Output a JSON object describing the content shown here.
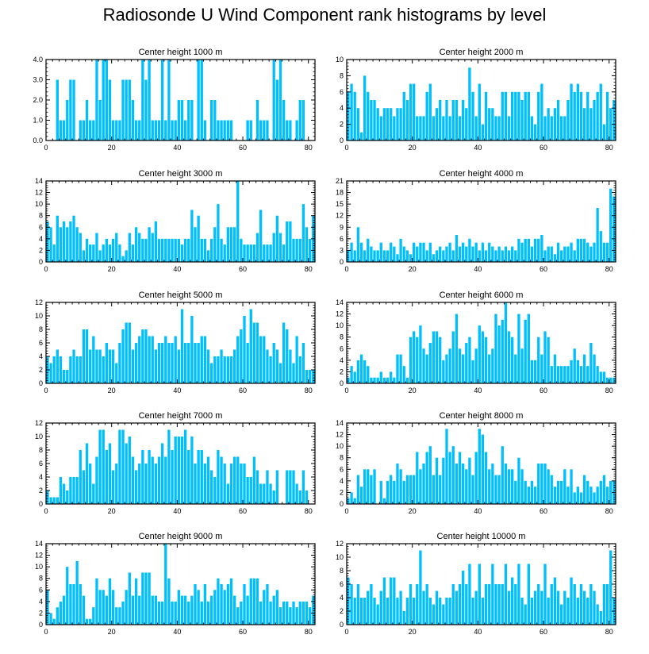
{
  "figure_title": "Radiosonde U Wind Component rank histograms by level",
  "bar_color": "#00BFFF",
  "axis_color": "#000000",
  "chart_data": [
    {
      "type": "bar",
      "title": "Center height 1000 m",
      "xlim": [
        0,
        82
      ],
      "xticks": [
        0,
        20,
        40,
        60,
        80
      ],
      "ylim": [
        0,
        4
      ],
      "yticks": [
        0.0,
        1.0,
        2.0,
        3.0,
        4.0
      ],
      "ytick_decimals": 1,
      "values": [
        0,
        0,
        0,
        3,
        1,
        1,
        2,
        3,
        3,
        0,
        1,
        1,
        2,
        1,
        1,
        4,
        2,
        4,
        4,
        3,
        1,
        1,
        1,
        3,
        3,
        3,
        2,
        1,
        1,
        4,
        3,
        4,
        1,
        1,
        1,
        4,
        1,
        4,
        1,
        1,
        2,
        2,
        1,
        2,
        2,
        0,
        4,
        4,
        1,
        0,
        2,
        2,
        1,
        1,
        1,
        1,
        1,
        0,
        0,
        0,
        0,
        1,
        1,
        0,
        2,
        1,
        1,
        1,
        0,
        4,
        3,
        4,
        2,
        1,
        1,
        0,
        1,
        2,
        2,
        0,
        0
      ]
    },
    {
      "type": "bar",
      "title": "Center height 2000 m",
      "xlim": [
        0,
        82
      ],
      "xticks": [
        0,
        20,
        40,
        60,
        80
      ],
      "ylim": [
        0,
        10
      ],
      "yticks": [
        0,
        2,
        4,
        6,
        8,
        10
      ],
      "ytick_decimals": 0,
      "values": [
        6,
        7,
        6,
        4,
        1,
        8,
        6,
        5,
        5,
        4,
        3,
        4,
        4,
        4,
        3,
        4,
        4,
        6,
        5,
        7,
        7,
        3,
        3,
        3,
        6,
        7,
        3,
        4,
        5,
        3,
        5,
        3,
        5,
        5,
        3,
        5,
        4,
        9,
        6,
        3,
        7,
        2,
        6,
        4,
        4,
        3,
        3,
        6,
        6,
        3,
        6,
        6,
        6,
        5,
        6,
        6,
        3,
        2,
        6,
        7,
        3,
        4,
        3,
        4,
        5,
        3,
        3,
        5,
        7,
        6,
        7,
        6,
        4,
        6,
        4,
        5,
        6,
        7,
        2,
        6,
        4,
        5
      ]
    },
    {
      "type": "bar",
      "title": "Center height 3000 m",
      "xlim": [
        0,
        82
      ],
      "xticks": [
        0,
        20,
        40,
        60,
        80
      ],
      "ylim": [
        0,
        14
      ],
      "yticks": [
        0,
        2,
        4,
        6,
        8,
        10,
        12,
        14
      ],
      "ytick_decimals": 0,
      "values": [
        7,
        6,
        3,
        8,
        6,
        7,
        6,
        7,
        8,
        6,
        5,
        2,
        4,
        3,
        3,
        5,
        2,
        3,
        4,
        3,
        4,
        5,
        3,
        1,
        2,
        5,
        3,
        6,
        5,
        4,
        4,
        6,
        5,
        7,
        4,
        4,
        4,
        4,
        4,
        4,
        4,
        3,
        4,
        4,
        9,
        6,
        8,
        4,
        4,
        2,
        4,
        6,
        10,
        4,
        3,
        6,
        6,
        6,
        14,
        4,
        3,
        3,
        3,
        3,
        5,
        9,
        3,
        3,
        3,
        5,
        8,
        5,
        3,
        7,
        7,
        4,
        4,
        4,
        10,
        6,
        4,
        8
      ]
    },
    {
      "type": "bar",
      "title": "Center height 4000 m",
      "xlim": [
        0,
        82
      ],
      "xticks": [
        0,
        20,
        40,
        60,
        80
      ],
      "ylim": [
        0,
        21
      ],
      "yticks": [
        0,
        3,
        6,
        9,
        12,
        15,
        18,
        21
      ],
      "ytick_decimals": 0,
      "values": [
        3,
        5,
        3,
        9,
        5,
        3,
        6,
        4,
        3,
        3,
        5,
        3,
        3,
        5,
        4,
        2,
        6,
        4,
        3,
        2,
        5,
        4,
        5,
        5,
        3,
        5,
        2,
        3,
        4,
        3,
        4,
        5,
        3,
        7,
        4,
        5,
        4,
        6,
        4,
        5,
        3,
        5,
        3,
        5,
        4,
        3,
        4,
        3,
        4,
        3,
        4,
        3,
        6,
        5,
        6,
        6,
        4,
        6,
        6,
        7,
        3,
        4,
        4,
        2,
        5,
        3,
        4,
        4,
        5,
        3,
        6,
        6,
        6,
        5,
        4,
        5,
        14,
        8,
        5,
        5,
        19,
        17
      ]
    },
    {
      "type": "bar",
      "title": "Center height 5000 m",
      "xlim": [
        0,
        82
      ],
      "xticks": [
        0,
        20,
        40,
        60,
        80
      ],
      "ylim": [
        0,
        12
      ],
      "yticks": [
        0,
        2,
        4,
        6,
        8,
        10,
        12
      ],
      "ytick_decimals": 0,
      "values": [
        4,
        3,
        4,
        5,
        4,
        2,
        2,
        4,
        5,
        4,
        4,
        8,
        8,
        5,
        7,
        5,
        5,
        4,
        6,
        5,
        5,
        3,
        6,
        8,
        9,
        9,
        5,
        6,
        7,
        8,
        8,
        7,
        7,
        5,
        6,
        6,
        7,
        6,
        6,
        7,
        5,
        11,
        6,
        6,
        10,
        6,
        6,
        7,
        7,
        5,
        3,
        4,
        4,
        5,
        4,
        4,
        4,
        5,
        7,
        8,
        10,
        6,
        11,
        9,
        9,
        7,
        7,
        5,
        4,
        6,
        5,
        3,
        9,
        8,
        5,
        3,
        7,
        4,
        6,
        2,
        2,
        2
      ]
    },
    {
      "type": "bar",
      "title": "Center height 6000 m",
      "xlim": [
        0,
        82
      ],
      "xticks": [
        0,
        20,
        40,
        60,
        80
      ],
      "ylim": [
        0,
        14
      ],
      "yticks": [
        0,
        2,
        4,
        6,
        8,
        10,
        12,
        14
      ],
      "ytick_decimals": 0,
      "values": [
        1,
        3,
        2,
        4,
        5,
        4,
        3,
        1,
        1,
        1,
        2,
        1,
        1,
        2,
        1,
        5,
        5,
        3,
        1,
        8,
        9,
        8,
        10,
        6,
        5,
        7,
        9,
        9,
        8,
        4,
        5,
        6,
        9,
        12,
        6,
        5,
        7,
        8,
        4,
        6,
        10,
        9,
        8,
        5,
        6,
        12,
        10,
        11,
        14,
        9,
        8,
        5,
        12,
        6,
        11,
        12,
        4,
        4,
        8,
        5,
        9,
        8,
        3,
        5,
        3,
        3,
        3,
        3,
        4,
        6,
        4,
        3,
        5,
        3,
        7,
        5,
        3,
        2,
        2,
        1,
        1,
        1
      ]
    },
    {
      "type": "bar",
      "title": "Center height 7000 m",
      "xlim": [
        0,
        82
      ],
      "xticks": [
        0,
        20,
        40,
        60,
        80
      ],
      "ylim": [
        0,
        12
      ],
      "yticks": [
        0,
        2,
        4,
        6,
        8,
        10,
        12
      ],
      "ytick_decimals": 0,
      "values": [
        2,
        1,
        1,
        1,
        4,
        3,
        2,
        4,
        4,
        4,
        8,
        5,
        9,
        6,
        3,
        7,
        11,
        11,
        8,
        9,
        5,
        6,
        11,
        11,
        9,
        10,
        7,
        5,
        6,
        8,
        6,
        8,
        7,
        6,
        7,
        9,
        7,
        11,
        8,
        10,
        10,
        10,
        11,
        8,
        10,
        6,
        8,
        8,
        6,
        7,
        5,
        4,
        8,
        7,
        6,
        3,
        6,
        7,
        7,
        6,
        6,
        4,
        4,
        7,
        5,
        3,
        3,
        5,
        3,
        2,
        5,
        0,
        0,
        5,
        5,
        5,
        3,
        2,
        5,
        2,
        0,
        0
      ]
    },
    {
      "type": "bar",
      "title": "Center height 8000 m",
      "xlim": [
        0,
        82
      ],
      "xticks": [
        0,
        20,
        40,
        60,
        80
      ],
      "ylim": [
        0,
        14
      ],
      "yticks": [
        0,
        2,
        4,
        6,
        8,
        10,
        12,
        14
      ],
      "ytick_decimals": 0,
      "values": [
        1,
        2,
        1,
        5,
        3,
        6,
        6,
        5,
        6,
        0,
        4,
        1,
        4,
        5,
        4,
        7,
        6,
        4,
        5,
        5,
        5,
        9,
        6,
        7,
        9,
        10,
        5,
        8,
        5,
        8,
        13,
        9,
        10,
        7,
        9,
        7,
        6,
        8,
        5,
        9,
        13,
        12,
        9,
        6,
        7,
        5,
        5,
        10,
        7,
        6,
        6,
        4,
        8,
        6,
        4,
        3,
        4,
        3,
        7,
        7,
        7,
        6,
        5,
        3,
        4,
        4,
        6,
        3,
        6,
        2,
        3,
        2,
        5,
        4,
        3,
        2,
        3,
        4,
        5,
        3,
        4,
        4
      ]
    },
    {
      "type": "bar",
      "title": "Center height 9000 m",
      "xlim": [
        0,
        82
      ],
      "xticks": [
        0,
        20,
        40,
        60,
        80
      ],
      "ylim": [
        0,
        14
      ],
      "yticks": [
        0,
        2,
        4,
        6,
        8,
        10,
        12,
        14
      ],
      "ytick_decimals": 0,
      "values": [
        6,
        2,
        1,
        3,
        4,
        5,
        10,
        7,
        7,
        11,
        7,
        5,
        1,
        1,
        3,
        8,
        6,
        6,
        5,
        8,
        6,
        3,
        3,
        4,
        6,
        9,
        5,
        8,
        5,
        9,
        9,
        9,
        5,
        5,
        4,
        4,
        14,
        8,
        4,
        4,
        6,
        5,
        5,
        4,
        5,
        7,
        6,
        4,
        7,
        4,
        5,
        6,
        8,
        7,
        6,
        7,
        8,
        5,
        3,
        4,
        7,
        5,
        8,
        8,
        8,
        4,
        6,
        7,
        4,
        5,
        6,
        3,
        4,
        4,
        3,
        4,
        3,
        4,
        4,
        4,
        3,
        5
      ]
    },
    {
      "type": "bar",
      "title": "Center height 10000 m",
      "xlim": [
        0,
        82
      ],
      "xticks": [
        0,
        20,
        40,
        60,
        80
      ],
      "ylim": [
        0,
        12
      ],
      "yticks": [
        0,
        2,
        4,
        6,
        8,
        10,
        12
      ],
      "ytick_decimals": 0,
      "values": [
        7,
        6,
        4,
        6,
        4,
        4,
        5,
        6,
        4,
        3,
        5,
        7,
        4,
        7,
        7,
        4,
        5,
        2,
        4,
        6,
        4,
        6,
        11,
        5,
        6,
        4,
        3,
        5,
        4,
        3,
        4,
        4,
        6,
        5,
        6,
        8,
        6,
        9,
        4,
        5,
        9,
        4,
        6,
        6,
        9,
        6,
        6,
        6,
        9,
        5,
        7,
        6,
        9,
        4,
        3,
        9,
        4,
        5,
        6,
        5,
        9,
        4,
        6,
        7,
        5,
        3,
        5,
        4,
        7,
        6,
        4,
        6,
        5,
        4,
        6,
        5,
        3,
        2,
        6,
        6,
        11,
        4
      ]
    }
  ]
}
